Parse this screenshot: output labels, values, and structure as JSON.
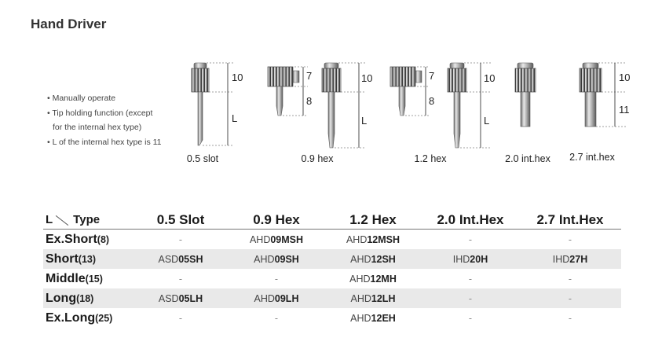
{
  "title": "Hand Driver",
  "notes": [
    "• Manually operate",
    "• Tip holding function (except",
    "for the internal hex type)",
    "• L of the internal hex type is 11"
  ],
  "illustrations": {
    "captions": [
      "0.5 slot",
      "0.9 hex",
      "1.2 hex",
      "2.0 int.hex",
      "2.7 int.hex"
    ],
    "dimension_labels": {
      "head": "10",
      "shaft": "L",
      "tip_head": "7",
      "tip_shaft": "8",
      "int_shaft": "11"
    }
  },
  "table": {
    "corner_l": "L",
    "corner_type": "Type",
    "columns": [
      "0.5 Slot",
      "0.9 Hex",
      "1.2 Hex",
      "2.0 Int.Hex",
      "2.7 Int.Hex"
    ],
    "rows": [
      {
        "name": "Ex.Short",
        "length": "(8)",
        "cells": [
          {
            "dash": "-"
          },
          {
            "prefix": "AHD",
            "code": "09MSH"
          },
          {
            "prefix": "AHD",
            "code": "12MSH"
          },
          {
            "dash": "-"
          },
          {
            "dash": "-"
          }
        ]
      },
      {
        "name": "Short",
        "length": "(13)",
        "cells": [
          {
            "prefix": "ASD",
            "code": "05SH"
          },
          {
            "prefix": "AHD",
            "code": "09SH"
          },
          {
            "prefix": "AHD",
            "code": "12SH"
          },
          {
            "prefix": "IHD",
            "code": "20H"
          },
          {
            "prefix": "IHD",
            "code": "27H"
          }
        ]
      },
      {
        "name": "Middle",
        "length": "(15)",
        "cells": [
          {
            "dash": "-"
          },
          {
            "dash": "-"
          },
          {
            "prefix": "AHD",
            "code": "12MH"
          },
          {
            "dash": "-"
          },
          {
            "dash": "-"
          }
        ]
      },
      {
        "name": "Long",
        "length": "(18)",
        "cells": [
          {
            "prefix": "ASD",
            "code": "05LH"
          },
          {
            "prefix": "AHD",
            "code": "09LH"
          },
          {
            "prefix": "AHD",
            "code": "12LH"
          },
          {
            "dash": "-"
          },
          {
            "dash": "-"
          }
        ]
      },
      {
        "name": "Ex.Long",
        "length": "(25)",
        "cells": [
          {
            "dash": "-"
          },
          {
            "dash": "-"
          },
          {
            "prefix": "AHD",
            "code": "12EH"
          },
          {
            "dash": "-"
          },
          {
            "dash": "-"
          }
        ]
      }
    ]
  }
}
